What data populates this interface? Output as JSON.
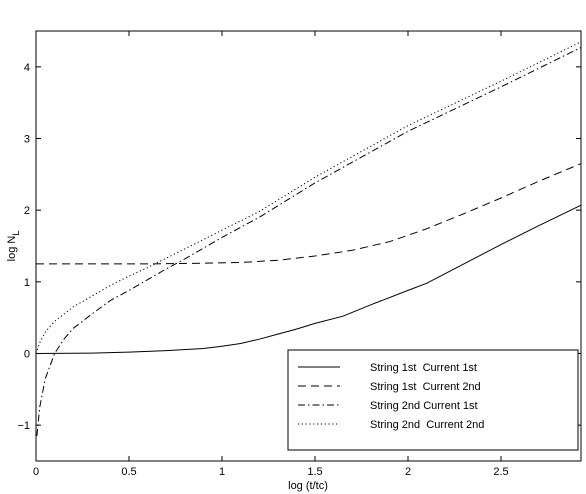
{
  "chart_data": {
    "type": "line",
    "title": "",
    "xlabel": "log (t/tc)",
    "ylabel": "log N",
    "ylabel_sub": "L",
    "xlim": [
      0,
      2.93
    ],
    "ylim": [
      -1.5,
      4.5
    ],
    "xticks": [
      0,
      0.5,
      1,
      1.5,
      2,
      2.5
    ],
    "xtick_labels": [
      "0",
      "0.5",
      "1",
      "1.5",
      "2",
      "2.5"
    ],
    "yticks": [
      -1,
      0,
      1,
      2,
      3,
      4
    ],
    "ytick_labels": [
      "−1",
      "0",
      "1",
      "2",
      "3",
      "4"
    ],
    "grid": false,
    "legend_position": "bottom-right",
    "series": [
      {
        "name": "String 1st  Current 1st",
        "style": "solid",
        "x": [
          0,
          0.3,
          0.5,
          0.7,
          0.9,
          1.0,
          1.1,
          1.2,
          1.3,
          1.4,
          1.5,
          1.65,
          1.8,
          2.0,
          2.1,
          2.3,
          2.5,
          2.7,
          2.93
        ],
        "y": [
          0,
          0.005,
          0.02,
          0.04,
          0.07,
          0.1,
          0.14,
          0.2,
          0.27,
          0.34,
          0.42,
          0.52,
          0.68,
          0.88,
          0.98,
          1.25,
          1.52,
          1.78,
          2.07
        ]
      },
      {
        "name": "String 1st  Current 2nd",
        "style": "dashed",
        "x": [
          0,
          0.3,
          0.6,
          0.9,
          1.1,
          1.3,
          1.5,
          1.7,
          1.9,
          2.1,
          2.3,
          2.5,
          2.7,
          2.93
        ],
        "y": [
          1.25,
          1.25,
          1.25,
          1.26,
          1.27,
          1.3,
          1.36,
          1.44,
          1.56,
          1.74,
          1.95,
          2.17,
          2.4,
          2.65
        ]
      },
      {
        "name": "String 2nd Current 1st",
        "style": "dashdot",
        "x": [
          0.005,
          0.02,
          0.05,
          0.1,
          0.15,
          0.2,
          0.3,
          0.4,
          0.5,
          0.6,
          0.7,
          0.8,
          1.0,
          1.2,
          1.5,
          2.0,
          2.5,
          2.93
        ],
        "y": [
          -1.15,
          -0.75,
          -0.35,
          0.0,
          0.2,
          0.35,
          0.55,
          0.74,
          0.88,
          1.03,
          1.18,
          1.32,
          1.62,
          1.9,
          2.38,
          3.1,
          3.72,
          4.27
        ]
      },
      {
        "name": "String 2nd  Current 2nd",
        "style": "dotted",
        "x": [
          0,
          0.02,
          0.05,
          0.1,
          0.15,
          0.2,
          0.3,
          0.4,
          0.5,
          0.6,
          0.7,
          0.8,
          1.0,
          1.2,
          1.5,
          2.0,
          2.5,
          2.93
        ],
        "y": [
          0.0,
          0.15,
          0.3,
          0.45,
          0.55,
          0.65,
          0.8,
          0.95,
          1.08,
          1.2,
          1.33,
          1.46,
          1.72,
          1.98,
          2.46,
          3.18,
          3.8,
          4.35
        ]
      }
    ]
  }
}
